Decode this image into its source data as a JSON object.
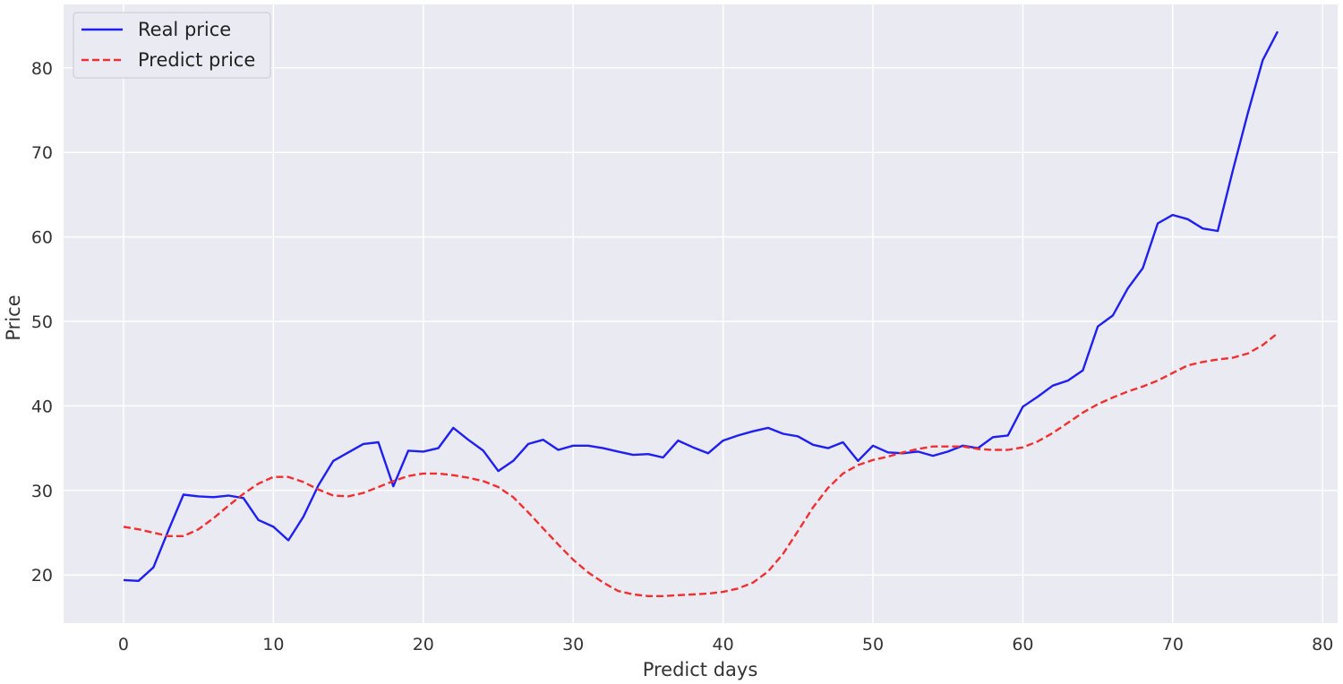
{
  "chart_data": {
    "type": "line",
    "title": "",
    "xlabel": "Predict days",
    "ylabel": "Price",
    "xlim": [
      -4,
      81
    ],
    "ylim": [
      14.3,
      87.5
    ],
    "xticks": [
      0,
      10,
      20,
      30,
      40,
      50,
      60,
      70,
      80
    ],
    "yticks": [
      20,
      30,
      40,
      50,
      60,
      70,
      80
    ],
    "grid": true,
    "legend": "top-left",
    "background": "#eaeaf2",
    "series": [
      {
        "name": "Real price",
        "color": "#1f1ff2",
        "style": "solid",
        "x": [
          0,
          1,
          2,
          3,
          4,
          5,
          6,
          7,
          8,
          9,
          10,
          11,
          12,
          13,
          14,
          15,
          16,
          17,
          18,
          19,
          20,
          21,
          22,
          23,
          24,
          25,
          26,
          27,
          28,
          29,
          30,
          31,
          32,
          33,
          34,
          35,
          36,
          37,
          38,
          39,
          40,
          41,
          42,
          43,
          44,
          45,
          46,
          47,
          48,
          49,
          50,
          51,
          52,
          53,
          54,
          55,
          56,
          57,
          58,
          59,
          60,
          61,
          62,
          63,
          64,
          65,
          66,
          67,
          68,
          69,
          70,
          71,
          72,
          73,
          74,
          75,
          76,
          77
        ],
        "y": [
          19.4,
          19.3,
          20.9,
          25.3,
          29.5,
          29.3,
          29.2,
          29.4,
          29.1,
          26.5,
          25.7,
          24.1,
          26.9,
          30.6,
          33.5,
          34.5,
          35.5,
          35.7,
          30.5,
          34.7,
          34.6,
          35.0,
          37.4,
          36.0,
          34.7,
          32.3,
          33.5,
          35.5,
          36.0,
          34.8,
          35.3,
          35.3,
          35.0,
          34.6,
          34.2,
          34.3,
          33.9,
          35.9,
          35.1,
          34.4,
          35.9,
          36.5,
          37.0,
          37.4,
          36.7,
          36.4,
          35.4,
          35.0,
          35.7,
          33.5,
          35.3,
          34.5,
          34.4,
          34.6,
          34.1,
          34.6,
          35.3,
          35.0,
          36.3,
          36.5,
          39.9,
          41.1,
          42.4,
          43.0,
          44.2,
          49.4,
          50.7,
          53.9,
          56.3,
          61.6,
          62.6,
          62.1,
          61.0,
          60.7,
          67.8,
          74.6,
          80.9,
          84.3
        ]
      },
      {
        "name": "Predict price",
        "color": "#f03030",
        "style": "dashed",
        "x": [
          0,
          1,
          2,
          3,
          4,
          5,
          6,
          7,
          8,
          9,
          10,
          11,
          12,
          13,
          14,
          15,
          16,
          17,
          18,
          19,
          20,
          21,
          22,
          23,
          24,
          25,
          26,
          27,
          28,
          29,
          30,
          31,
          32,
          33,
          34,
          35,
          36,
          37,
          38,
          39,
          40,
          41,
          42,
          43,
          44,
          45,
          46,
          47,
          48,
          49,
          50,
          51,
          52,
          53,
          54,
          55,
          56,
          57,
          58,
          59,
          60,
          61,
          62,
          63,
          64,
          65,
          66,
          67,
          68,
          69,
          70,
          71,
          72,
          73,
          74,
          75,
          76,
          77
        ],
        "y": [
          25.7,
          25.4,
          25.0,
          24.6,
          24.6,
          25.4,
          26.7,
          28.2,
          29.6,
          30.8,
          31.6,
          31.6,
          31.0,
          30.1,
          29.4,
          29.3,
          29.7,
          30.4,
          31.1,
          31.7,
          32.0,
          32.0,
          31.8,
          31.5,
          31.1,
          30.4,
          29.2,
          27.4,
          25.5,
          23.6,
          21.8,
          20.3,
          19.1,
          18.1,
          17.7,
          17.5,
          17.5,
          17.6,
          17.7,
          17.8,
          18.0,
          18.4,
          19.1,
          20.4,
          22.5,
          25.2,
          28.0,
          30.3,
          32.0,
          33.0,
          33.6,
          34.0,
          34.5,
          34.9,
          35.2,
          35.2,
          35.2,
          34.9,
          34.8,
          34.8,
          35.1,
          35.8,
          36.8,
          38.0,
          39.2,
          40.2,
          41.0,
          41.7,
          42.3,
          43.0,
          43.9,
          44.8,
          45.2,
          45.5,
          45.7,
          46.2,
          47.2,
          48.6
        ]
      }
    ]
  }
}
